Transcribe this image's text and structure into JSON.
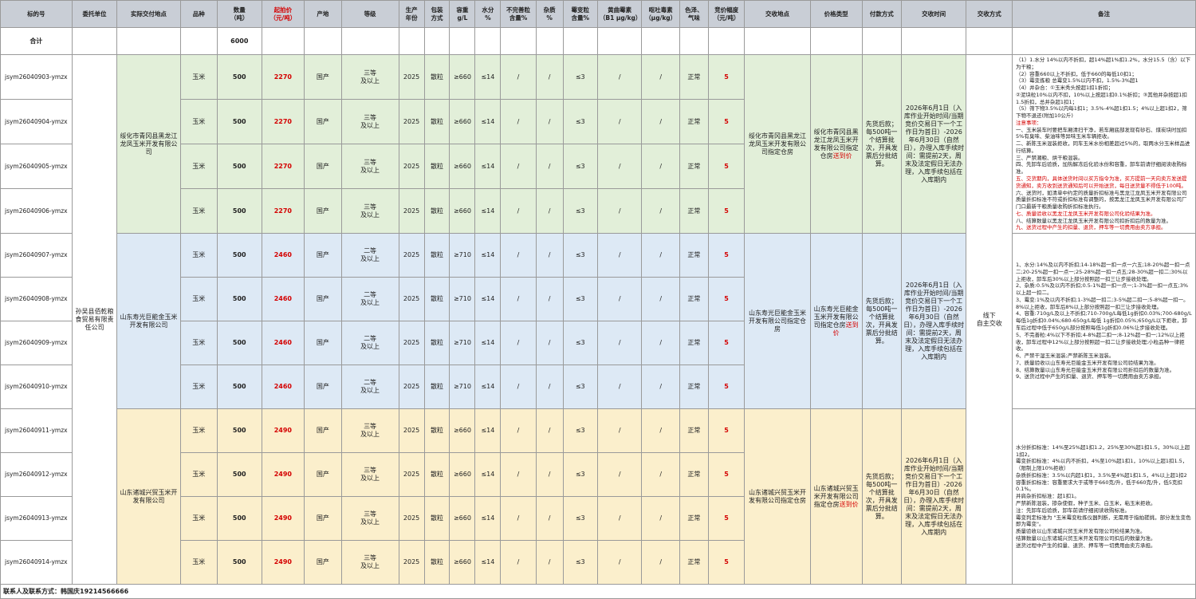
{
  "headers": [
    "标的号",
    "委托单位",
    "实际交付地点",
    "品种",
    "数量\n（吨）",
    "起拍价\n（元/吨）",
    "产地",
    "等级",
    "生产\n年份",
    "包装\n方式",
    "容重\ng/L",
    "水分\n%",
    "不完善粒\n含量%",
    "杂质\n%",
    "霉变粒\n含量%",
    "黄曲霉素\n（B1 μg/kg）",
    "呕吐毒素\n（μg/kg）",
    "色泽、\n气味",
    "竞价幅度\n（元/吨）",
    "交收地点",
    "价格类型",
    "付款方式",
    "交收时间",
    "交收方式",
    "备注"
  ],
  "total": {
    "label": "合计",
    "qty": "6000"
  },
  "consignor": "孙吴县佰乾粮食贸易有限责任公司",
  "delivery_method": "线下\n自主交收",
  "common": {
    "variety": "玉米",
    "qty": "500",
    "origin": "国产",
    "year": "2025",
    "pack": "散粒",
    "moisture": "≤14",
    "imperfect": "/",
    "impurity": "/",
    "mold": "≤3",
    "aflatoxin": "/",
    "don": "/",
    "color": "正常",
    "step": "5"
  },
  "groups": [
    {
      "delivery_place": "绥化市青冈县黑龙江龙凤玉米开发有限公司",
      "price": "2270",
      "grade": "三等\n及以上",
      "density": "≥660",
      "lots": [
        "jsym26040903-ymzx",
        "jsym26040904-ymzx",
        "jsym26040905-ymzx",
        "jsym26040906-ymzx"
      ],
      "settle_place": "绥化市青冈县黑龙江龙凤玉米开发有限公司指定仓房",
      "price_type": "绥化市青冈县黑龙江龙凤玉米开发有限公司指定仓房",
      "price_suffix": "送到价",
      "payment": "先货后款；每500吨一个结算批次，开具发票后分批结算。",
      "time": "2026年6月1日（入库作业开始时间/当期竞价交易日下一个工作日为首日）-2026年6月30日（自然日），办理入库手续时间：需提前2天，周末及法定假日无法办理，入库手续包括在入库期内",
      "notes": [
        {
          "t": "（1）1.水分 14%以内不折扣，超14%超1%扣1.2%，水分15.5（含）以下为干粮；",
          "red": false
        },
        {
          "t": "（2）容重660以上不折扣，低于660的每低10扣1；",
          "red": false
        },
        {
          "t": "（3）霉变拣粮 总霉变1.5%以内不扣，1.5%-3%超1",
          "red": false
        },
        {
          "t": "（4）并杂合：①玉米秀头按超1扣1折扣；",
          "red": false
        },
        {
          "t": "②泥块粒10%以内不扣，10%以上按超1扣0.1%折扣；③其他并杂按超1扣1.5折扣，总并杂超1扣1；",
          "red": false
        },
        {
          "t": "（5）筛下物3.5%以内每1扣1；3.5%-4%超1扣1.5；4%以上超1扣2，筛下物不退还(附加10公斤)",
          "red": false
        },
        {
          "t": "注意事项：",
          "red": true
        },
        {
          "t": "一、玉米装车时要把车厢清扫干净，若车厢底部发现有砂石、煤炭块时加扣5%有臭味、柴油味等异味玉米车辆拒收。",
          "red": false
        },
        {
          "t": "二、新陈玉米混装拒收，同车玉米水份相差超过5%的，取两水分玉米样品进行结算。",
          "red": false
        },
        {
          "t": "三、严禁潮粮、烘干粮混装。",
          "red": false
        },
        {
          "t": "四、先卸车后验质，加热解冻后化验水份和容重，卸车前请仔细阅读收购标准。",
          "red": false
        },
        {
          "t": "五、交货期内，具体送货时间以买方指令为准，买方提前一天向卖方发送提货通知，卖方收到送货通知后可以开始送货，每日送货量不得低于100吨。",
          "red": true
        },
        {
          "t": "六、送货时，如清单中约定的质量折扣标准与黑龙江龙凤玉米开发有限公司质量折扣标准不符或折扣标准有调整的，按黑龙江龙凤玉米开发有限公司厂门口最新干粮质量收购折扣标准执行。",
          "red": false
        },
        {
          "t": "七、质量验收以黑龙江龙凤玉米开发有限公司化验结果为准。",
          "red": true
        },
        {
          "t": "八、结算数量以黑龙江龙凤玉米开发有限公司扣折扣后的数量为准。",
          "red": false
        },
        {
          "t": "九、送货过程中产生的扣量、退货，押车等一切费用由卖方承担。",
          "red": true
        }
      ]
    },
    {
      "delivery_place": "山东寿光巨能金玉米开发有限公司",
      "price": "2460",
      "grade": "二等\n及以上",
      "density": "≥710",
      "lots": [
        "jsym26040907-ymzx",
        "jsym26040908-ymzx",
        "jsym26040909-ymzx",
        "jsym26040910-ymzx"
      ],
      "settle_place": "山东寿光巨能金玉米开发有限公司指定仓房",
      "price_type": "山东寿光巨能金玉米开发有限公司指定仓房",
      "price_suffix": "送到价",
      "payment": "先货后款；每500吨一个结算批次，开具发票后分批结算。",
      "time": "2026年6月1日（入库作业开始时间/当期竞价交易日下一个工作日为首日）-2026年6月30日（自然日），办理入库手续时间：需提前2天，周末及法定假日无法办理，入库手续包括在入库期内",
      "notes": [
        {
          "t": "1、水分:14%及以内不折扣;14-18%超一扣一点一六五;18-20%超一扣一点二;20-25%超一扣一点一;25-28%超一扣一点五;28-30%超一扣二;30%以上拒收，卸车后30%以上部分按照超一扣三让步接收处理。",
          "red": false
        },
        {
          "t": "2、杂质:0.5%及以内不折扣;0.5-1%超一扣一点一;1-3%超一扣一点五;3%以上超一扣二。",
          "red": false
        },
        {
          "t": "3、霉变:1%及以内不折扣;1-3%超一扣二;3-5%超二扣一;5-8%超一扣一。8%以上拒收，卸车后8%以上部分按照超一扣三让步接收处理。",
          "red": false
        },
        {
          "t": "4、容重:710g/L及以上不折扣;710-700g/L每低1g折扣0.03%;700-680g/L每低1g折扣0.04%;680-650g/L每低 1g折扣0.05%;650g/L以下拒收，卸车后过程中低于650g/L部分按照每低1g折扣0.06%让步接收处理。",
          "red": false
        },
        {
          "t": "5、不完善粒:4%以下不折扣;4-8%超二扣一;8-12%超一扣一;12%以上拒收，卸车过程中12%以上部分按照超一扣二让步接收处理;小粒品种一律拒收。",
          "red": false
        },
        {
          "t": "6、严禁干湿玉米混装;严禁新陈玉米混装。",
          "red": false
        },
        {
          "t": "7、质量验收以山东寿光巨能金玉米开发有限公司验结果为准。",
          "red": false
        },
        {
          "t": "8、结算数量以山东寿光巨能金玉米开发有限公司折扣后的数量为准。",
          "red": false
        },
        {
          "t": "9、送货过程中产生的扣量、退货、押车等一切费用由卖方承担。",
          "red": false
        }
      ]
    },
    {
      "delivery_place": "山东诸城兴贸玉米开发有限公司",
      "price": "2490",
      "grade": "三等\n及以上",
      "density": "≥660",
      "lots": [
        "jsym26040911-ymzx",
        "jsym26040912-ymzx",
        "jsym26040913-ymzx",
        "jsym26040914-ymzx"
      ],
      "settle_place": "山东诸城兴贸玉米开发有限公司指定仓房",
      "price_type": "山东诸城兴贸玉米开发有限公司指定仓房",
      "price_suffix": "送到价",
      "payment": "先货后款；每500吨一个结算批次，开具发票后分批结算。",
      "time": "2026年6月1日（入库作业开始时间/当期竞价交易日下一个工作日为首日）-2026年6月30日（自然日），办理入库手续时间：需提前2天，周末及法定假日无法办理，入库手续包括在入库期内",
      "notes": [
        {
          "t": "水分折扣标准：14%至25%超1扣1.2，25%至30%超1扣1.5，30%以上超1扣2。",
          "red": false
        },
        {
          "t": "霉变折扣标准：4%以内不折扣，4%至10%超1扣1，10%以上超1扣1.5，（限制上限10%拒收）",
          "red": false
        },
        {
          "t": "杂质折扣标准：3.5%以内超1扣1，3.5%至4%超1扣1.5，4%以上超1扣2",
          "red": false
        },
        {
          "t": "容重折扣标准：容重要求大于或等于660克/升，低于660克/升，低5克扣0.1%。",
          "red": false
        },
        {
          "t": "并肩杂折扣标准：超1扣1。",
          "red": false
        },
        {
          "t": "严禁新陈混装，掺杂使假，种子玉米、白玉米，粘玉米拒收。",
          "red": false
        },
        {
          "t": "注：先卸车后验质，卸车前请仔细阅读收购标准。",
          "red": false
        },
        {
          "t": "霉变判定标准为 \"玉米霉变粒拣仪器判断，无需用于指拍搓挑，部分发生变色即为霉变\"。",
          "red": false
        },
        {
          "t": "质量验收以山东诸城兴贸玉米开发有限公司检结果为准。",
          "red": false
        },
        {
          "t": "结算数量以山东诸城兴贸玉米开发有限公司扣后的数量为准。",
          "red": false
        },
        {
          "t": "送货过程中产生的扣量、退货、押车等一切费用由卖方承担。",
          "red": false
        }
      ]
    }
  ],
  "footer": "联系人及联系方式：韩国庆19214566666"
}
